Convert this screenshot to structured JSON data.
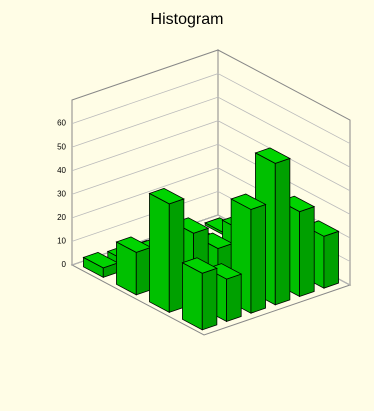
{
  "chart_data": {
    "type": "bar3d",
    "title": "Histogram",
    "color": "#00d400",
    "zlim": [
      0,
      70
    ],
    "zticks": [
      0,
      10,
      20,
      30,
      40,
      50,
      60
    ],
    "grid": true,
    "values": [
      [
        1,
        2,
        6,
        22
      ],
      [
        1,
        4,
        14,
        36
      ],
      [
        2,
        6,
        24,
        60
      ],
      [
        2,
        10,
        20,
        44
      ],
      [
        3,
        14,
        30,
        18
      ],
      [
        4,
        18,
        46,
        24
      ]
    ]
  }
}
